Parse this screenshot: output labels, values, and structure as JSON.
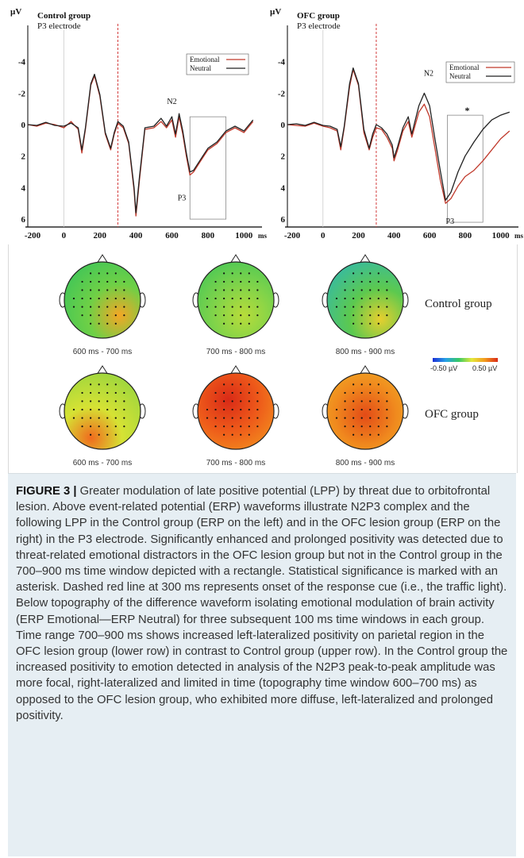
{
  "erp_panels": [
    {
      "id": "control",
      "title": "Control group",
      "electrode": "P3 electrode",
      "y_unit": "µV",
      "x_unit": "ms",
      "legend": [
        "Emotional",
        "Neutral"
      ],
      "peak_labels": [
        "N2",
        "P3"
      ],
      "x_ticks": [
        "-200",
        "0",
        "200",
        "400",
        "600",
        "800",
        "1000"
      ],
      "y_ticks": [
        "-4",
        "-2",
        "0",
        "2",
        "4",
        "6"
      ]
    },
    {
      "id": "ofc",
      "title": "OFC group",
      "electrode": "P3 electrode",
      "y_unit": "µV",
      "x_unit": "ms",
      "legend": [
        "Emotional",
        "Neutral"
      ],
      "peak_labels": [
        "N2",
        "P3"
      ],
      "significance_marker": "*",
      "x_ticks": [
        "-200",
        "0",
        "200",
        "400",
        "600",
        "800",
        "1000"
      ],
      "y_ticks": [
        "-4",
        "-2",
        "0",
        "2",
        "4",
        "6"
      ]
    }
  ],
  "chart_data": {
    "type": "line",
    "x_range_ms": [
      -200,
      1100
    ],
    "y_range_uv": [
      -6,
      6.5
    ],
    "y_inverted": true,
    "dashed_marker_ms": 300,
    "rect_window_ms": [
      700,
      900
    ],
    "panels": [
      {
        "name": "Control group",
        "series": [
          {
            "name": "Emotional",
            "color": "#c0392b",
            "x": [
              -200,
              -150,
              -100,
              -50,
              0,
              40,
              80,
              100,
              120,
              150,
              170,
              200,
              230,
              260,
              280,
              300,
              330,
              360,
              390,
              400,
              420,
              450,
              500,
              540,
              570,
              600,
              620,
              640,
              660,
              680,
              700,
              720,
              760,
              800,
              850,
              900,
              950,
              1000,
              1050
            ],
            "y": [
              0,
              0.1,
              -0.1,
              0,
              0.2,
              -0.2,
              0.3,
              1.8,
              0.3,
              -2.5,
              -3.1,
              -1.8,
              0.6,
              1.6,
              0.6,
              -0.1,
              0.2,
              1.2,
              4.2,
              5.8,
              3.5,
              0.3,
              0.2,
              -0.2,
              0.2,
              -0.3,
              0.8,
              -0.5,
              0.6,
              2.0,
              3.2,
              3.0,
              2.3,
              1.6,
              1.2,
              0.5,
              0.2,
              0.5,
              -0.2
            ]
          },
          {
            "name": "Neutral",
            "color": "#222222",
            "x": [
              -200,
              -150,
              -100,
              -50,
              0,
              40,
              80,
              100,
              120,
              150,
              170,
              200,
              230,
              260,
              280,
              300,
              330,
              360,
              390,
              400,
              420,
              450,
              500,
              540,
              570,
              600,
              620,
              640,
              660,
              680,
              700,
              720,
              760,
              800,
              850,
              900,
              950,
              1000,
              1050
            ],
            "y": [
              0,
              0.05,
              -0.15,
              0.05,
              0.1,
              -0.1,
              0.2,
              1.6,
              0.2,
              -2.6,
              -3.2,
              -1.9,
              0.5,
              1.5,
              0.5,
              -0.2,
              0.1,
              1.1,
              4.0,
              5.6,
              3.3,
              0.2,
              0.1,
              -0.4,
              0.1,
              -0.5,
              0.6,
              -0.7,
              0.4,
              1.8,
              3.0,
              2.9,
              2.2,
              1.5,
              1.1,
              0.4,
              0.1,
              0.4,
              -0.3
            ]
          }
        ]
      },
      {
        "name": "OFC group",
        "series": [
          {
            "name": "Emotional",
            "color": "#c0392b",
            "x": [
              -200,
              -150,
              -100,
              -50,
              0,
              40,
              80,
              100,
              120,
              150,
              170,
              200,
              230,
              260,
              280,
              300,
              330,
              360,
              390,
              400,
              420,
              450,
              480,
              500,
              540,
              570,
              600,
              630,
              660,
              690,
              720,
              760,
              800,
              850,
              900,
              950,
              1000,
              1050
            ],
            "y": [
              0,
              0.05,
              0.1,
              -0.1,
              0.1,
              0.2,
              0.4,
              1.6,
              0.2,
              -2.4,
              -3.5,
              -2.5,
              0.5,
              1.6,
              0.8,
              0.2,
              0.3,
              0.8,
              1.5,
              2.3,
              1.6,
              0.4,
              -0.2,
              0.8,
              -0.8,
              -1.3,
              -0.5,
              1.5,
              3.5,
              5.0,
              4.7,
              3.9,
              3.3,
              2.9,
              2.3,
              1.6,
              0.9,
              0.4
            ]
          },
          {
            "name": "Neutral",
            "color": "#222222",
            "x": [
              -200,
              -150,
              -100,
              -50,
              0,
              40,
              80,
              100,
              120,
              150,
              170,
              200,
              230,
              260,
              280,
              300,
              330,
              360,
              390,
              400,
              420,
              450,
              480,
              500,
              540,
              570,
              600,
              630,
              660,
              690,
              720,
              760,
              800,
              850,
              900,
              950,
              1000,
              1050
            ],
            "y": [
              0,
              -0.05,
              0.05,
              -0.15,
              0.05,
              0.1,
              0.3,
              1.4,
              0.1,
              -2.6,
              -3.6,
              -2.6,
              0.3,
              1.5,
              0.6,
              0,
              0.2,
              0.6,
              1.3,
              2.1,
              1.4,
              0.2,
              -0.5,
              0.6,
              -1.2,
              -2.0,
              -1.2,
              0.9,
              2.9,
              4.8,
              4.3,
              3.0,
              2.0,
              1.1,
              0.3,
              -0.3,
              -0.6,
              -0.8
            ]
          }
        ]
      }
    ]
  },
  "topography": {
    "rows": [
      {
        "group_label": "Control group",
        "maps": [
          {
            "label": "600 ms - 700 ms",
            "colors": [
              "#3bc45a",
              "#6fd046",
              "#f4a625"
            ],
            "hot_x": 0.72,
            "hot_y": 0.7
          },
          {
            "label": "700 ms - 800 ms",
            "colors": [
              "#3bc45a",
              "#7fd34a",
              "#b8dc3a"
            ],
            "hot_x": 0.6,
            "hot_y": 0.7
          },
          {
            "label": "800 ms - 900 ms",
            "colors": [
              "#34b9a8",
              "#5cc94f",
              "#e7cf2e"
            ],
            "hot_x": 0.7,
            "hot_y": 0.75
          }
        ]
      },
      {
        "group_label": "OFC group",
        "maps": [
          {
            "label": "600 ms - 700 ms",
            "colors": [
              "#9dd63e",
              "#d6e234",
              "#f06b1e"
            ],
            "hot_x": 0.35,
            "hot_y": 0.85
          },
          {
            "label": "700 ms - 800 ms",
            "colors": [
              "#f4a020",
              "#ee5a1a",
              "#d92a17"
            ],
            "hot_x": 0.4,
            "hot_y": 0.35
          },
          {
            "label": "800 ms - 900 ms",
            "colors": [
              "#f0c22a",
              "#f08a1e",
              "#e34b17"
            ],
            "hot_x": 0.5,
            "hot_y": 0.55
          }
        ]
      }
    ],
    "colorbar": {
      "min_label": "-0.50 µV",
      "max_label": "0.50 µV"
    }
  },
  "caption": {
    "figure_label": "FIGURE 3 |",
    "text": " Greater modulation of late positive potential (LPP) by threat due to orbitofrontal lesion. Above event-related potential (ERP) waveforms illustrate N2P3 complex and the following LPP in the Control group (ERP on the left) and in the OFC lesion group (ERP on the right) in the P3 electrode. Significantly enhanced and prolonged positivity was detected due to threat-related emotional distractors in the OFC lesion group but not in the Control group in the 700–900 ms time window depicted with a rectangle. Statistical significance is marked with an asterisk. Dashed red line at 300 ms represents onset of the response cue (i.e., the traffic light). Below topography of the difference waveform isolating emotional modulation of brain activity (ERP Emotional—ERP Neutral) for three subsequent 100 ms time windows in each group. Time range 700–900 ms shows increased left-lateralized positivity on parietal region in the OFC lesion group (lower row) in contrast to Control group (upper row). In the Control group the increased positivity to emotion detected in analysis of the N2P3 peak-to-peak amplitude was more focal, right-lateralized and limited in time (topography time window 600–700 ms) as opposed to the OFC lesion group, who exhibited more diffuse, left-lateralized and prolonged positivity."
  }
}
